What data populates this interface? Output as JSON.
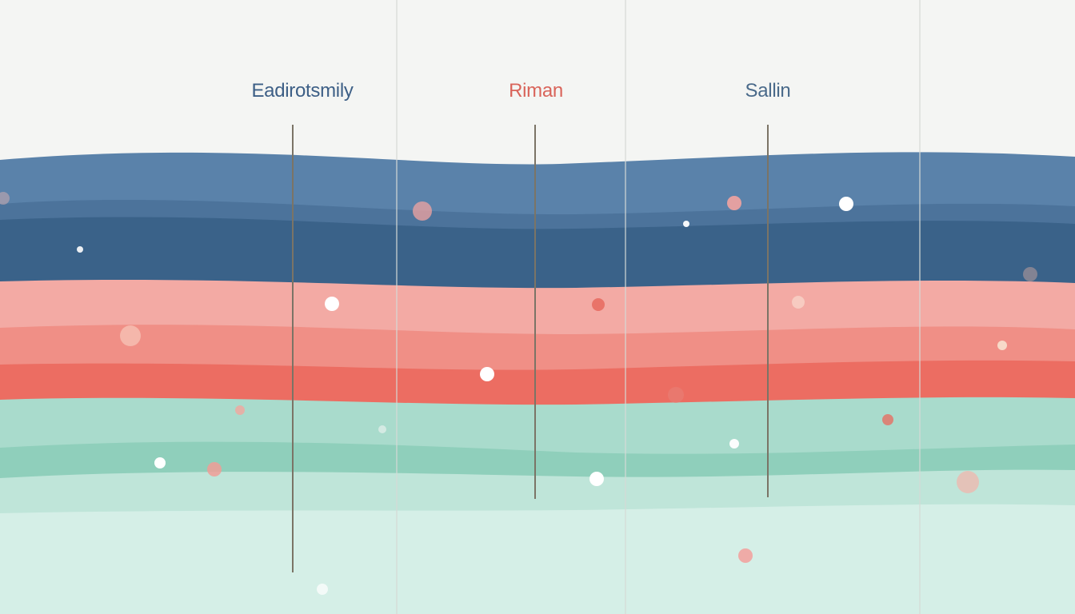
{
  "labels": {
    "left": {
      "text": "Eadirotsmily",
      "color": "#3d5f86"
    },
    "middle": {
      "text": "Riman",
      "color": "#d9645a"
    },
    "right": {
      "text": "Sallin",
      "color": "#4a6a8a"
    }
  },
  "colors": {
    "background": "#f4f5f3",
    "blue_light": "#5a82aa",
    "blue_mid": "#4c739b",
    "blue_dark": "#3a6289",
    "salmon_light": "#f3aaa4",
    "salmon_mid": "#f08f86",
    "coral": "#ec6d62",
    "mint_light": "#a9dbcc",
    "mint_mid": "#8fcfbb",
    "mint_pale": "#bfe5d9",
    "mint_bottom": "#d5efe7",
    "marker_line": "#7b7466",
    "gridline": "#d6d9d6"
  }
}
